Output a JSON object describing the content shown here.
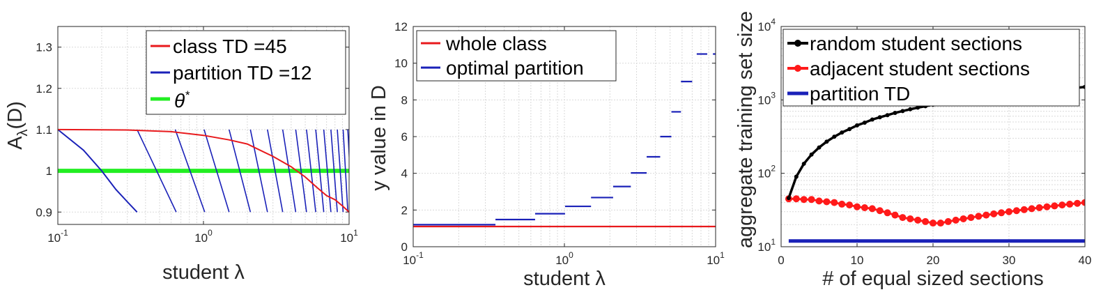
{
  "chart_data": [
    {
      "type": "line",
      "xscale": "log",
      "xlim": [
        0.1,
        10
      ],
      "ylim": [
        0.87,
        1.35
      ],
      "xticks": [
        0.1,
        1,
        10
      ],
      "xtick_labels": [
        [
          "10",
          "-1"
        ],
        [
          "10",
          "0"
        ],
        [
          "10",
          "1"
        ]
      ],
      "yticks": [
        0.9,
        1,
        1.1,
        1.2,
        1.3
      ],
      "ytick_labels": [
        "0.9",
        "1",
        "1.1",
        "1.2",
        "1.3"
      ],
      "xlabel": "student λ",
      "ylabel_main": "A",
      "ylabel_sub": "λ",
      "ylabel_rest": "(D)",
      "grid": true,
      "legend_position": "top-right",
      "legend": [
        {
          "text": "class TD =45",
          "color": "#e8191c"
        },
        {
          "text": "partition TD =12",
          "color": "#1a21b8"
        },
        {
          "text_main": "θ",
          "text_sup": "*",
          "color": "#22ee22"
        }
      ],
      "series": [
        {
          "role": "class",
          "color": "#e8191c",
          "x": [
            0.1,
            0.3,
            0.6,
            1.0,
            1.5,
            2.0,
            3.0,
            4.0,
            5.0,
            6.0,
            7.0,
            8.0,
            9.0,
            10.0
          ],
          "y": [
            1.1,
            1.099,
            1.095,
            1.086,
            1.075,
            1.065,
            1.035,
            1.01,
            0.985,
            0.96,
            0.94,
            0.93,
            0.915,
            0.9
          ]
        },
        {
          "role": "theta",
          "color": "#22ee22",
          "x": [
            0.1,
            10
          ],
          "y": [
            1.0,
            1.0
          ]
        }
      ],
      "partition_segments": {
        "color": "#1a21b8",
        "first": {
          "x": [
            0.1,
            0.15,
            0.2,
            0.25,
            0.3,
            0.35
          ],
          "y": [
            1.1,
            1.05,
            1.0,
            0.955,
            0.925,
            0.9
          ]
        },
        "x_top": [
          0.35,
          0.64,
          1.01,
          1.5,
          2.1,
          2.75,
          3.5,
          4.3,
          5.1,
          5.9,
          6.7,
          7.5,
          8.3,
          9.1,
          9.8
        ],
        "x_bottom": [
          0.65,
          1.02,
          1.5,
          2.1,
          2.75,
          3.5,
          4.3,
          5.1,
          5.9,
          6.7,
          7.5,
          8.3,
          9.1,
          9.8,
          10.5
        ],
        "y_top": 1.1,
        "y_bottom": 0.9
      }
    },
    {
      "type": "line",
      "xscale": "log",
      "xlim": [
        0.1,
        10
      ],
      "ylim": [
        0,
        12
      ],
      "xticks": [
        0.1,
        1,
        10
      ],
      "xtick_labels": [
        [
          "10",
          "-1"
        ],
        [
          "10",
          "0"
        ],
        [
          "10",
          "1"
        ]
      ],
      "yticks": [
        0,
        2,
        4,
        6,
        8,
        10,
        12
      ],
      "ytick_labels": [
        "0",
        "2",
        "4",
        "6",
        "8",
        "10",
        "12"
      ],
      "xlabel": "student λ",
      "ylabel": "y value in D",
      "grid": true,
      "legend_position": "top-left",
      "legend": [
        {
          "text": "whole class",
          "color": "#e8191c"
        },
        {
          "text": "optimal partition",
          "color": "#1a21b8"
        }
      ],
      "series": [
        {
          "role": "whole class",
          "color": "#e8191c",
          "x": [
            0.1,
            10
          ],
          "y": [
            1.1,
            1.1
          ]
        }
      ],
      "steps": {
        "color": "#1a21b8",
        "x0": [
          0.1,
          0.35,
          0.64,
          1.01,
          1.5,
          2.1,
          2.75,
          3.5,
          4.3,
          5.1,
          5.9,
          6.7,
          7.5,
          8.3,
          9.1
        ],
        "x1": [
          0.35,
          0.64,
          1.01,
          1.5,
          2.1,
          2.75,
          3.5,
          4.3,
          5.1,
          5.9,
          6.7,
          7.5,
          8.3,
          9.1,
          10.0
        ],
        "y": [
          1.2,
          1.48,
          1.8,
          2.2,
          2.68,
          3.28,
          4.02,
          4.9,
          6.0,
          7.35,
          9.0,
          10.5,
          10.5,
          10.5,
          10.5
        ],
        "visible": [
          1,
          1,
          1,
          1,
          1,
          1,
          1,
          1,
          1,
          1,
          1,
          0,
          0,
          0,
          0
        ]
      },
      "steps_right": {
        "x0": [
          0.1,
          0.35,
          0.64,
          1.01,
          1.5,
          2.1,
          2.75,
          3.5,
          4.3,
          5.1,
          5.9,
          7.5,
          9.6
        ],
        "x1": [
          0.35,
          0.64,
          1.01,
          1.5,
          2.1,
          2.75,
          3.5,
          4.3,
          5.1,
          5.9,
          7.0,
          8.8,
          10.0
        ],
        "y": [
          1.2,
          1.48,
          1.8,
          2.2,
          2.68,
          3.28,
          4.02,
          4.9,
          6.0,
          7.35,
          9.0,
          10.5,
          10.5
        ]
      }
    },
    {
      "type": "line",
      "yscale": "log",
      "xlim": [
        0,
        40
      ],
      "ylim": [
        10,
        10000
      ],
      "xticks": [
        0,
        10,
        20,
        30,
        40
      ],
      "xtick_labels": [
        "0",
        "10",
        "20",
        "30",
        "40"
      ],
      "yticks": [
        10,
        100,
        1000,
        10000
      ],
      "ytick_labels": [
        [
          "10",
          "1"
        ],
        [
          "10",
          "2"
        ],
        [
          "10",
          "3"
        ],
        [
          "10",
          "4"
        ]
      ],
      "xlabel": "# of equal sized sections",
      "ylabel": "aggregate training set size",
      "grid": true,
      "legend_position": "top",
      "legend": [
        {
          "text": "random student sections",
          "color": "#000000",
          "marker": true
        },
        {
          "text": "adjacent student sections",
          "color": "#ff1a1a",
          "marker": true
        },
        {
          "text": "partition TD",
          "color": "#1a21b8",
          "marker": false
        }
      ],
      "series": [
        {
          "name": "random student sections",
          "color": "#000000",
          "x": [
            1,
            2,
            3,
            4,
            5,
            6,
            7,
            8,
            9,
            10,
            11,
            12,
            13,
            14,
            15,
            16,
            17,
            18,
            19,
            20,
            21,
            22,
            23,
            24,
            25,
            26,
            27,
            28,
            29,
            30,
            31,
            32,
            33,
            34,
            35,
            36,
            37,
            38,
            39,
            40
          ],
          "y": [
            46,
            90,
            135,
            180,
            225,
            270,
            315,
            360,
            400,
            450,
            490,
            540,
            580,
            620,
            665,
            705,
            745,
            785,
            820,
            860,
            895,
            930,
            965,
            1000,
            1030,
            1065,
            1095,
            1130,
            1160,
            1190,
            1220,
            1250,
            1285,
            1315,
            1345,
            1375,
            1405,
            1435,
            1465,
            1500
          ]
        },
        {
          "name": "adjacent student sections",
          "color": "#ff1a1a",
          "x": [
            1,
            2,
            3,
            4,
            5,
            6,
            7,
            8,
            9,
            10,
            11,
            12,
            13,
            14,
            15,
            16,
            17,
            18,
            19,
            20,
            21,
            22,
            23,
            24,
            25,
            26,
            27,
            28,
            29,
            30,
            31,
            32,
            33,
            34,
            35,
            36,
            37,
            38,
            39,
            40
          ],
          "y": [
            45,
            45,
            44,
            44,
            42,
            41,
            40,
            38,
            37,
            35,
            34,
            33,
            31,
            29,
            27,
            25,
            24,
            23,
            22,
            21,
            21,
            22,
            23,
            24,
            25,
            26,
            27,
            28,
            29,
            30,
            31,
            32,
            33,
            34,
            35,
            36,
            37,
            38,
            39,
            40
          ]
        },
        {
          "name": "partition TD",
          "color": "#1a21b8",
          "x": [
            1,
            40
          ],
          "y": [
            12,
            12
          ]
        }
      ]
    }
  ]
}
